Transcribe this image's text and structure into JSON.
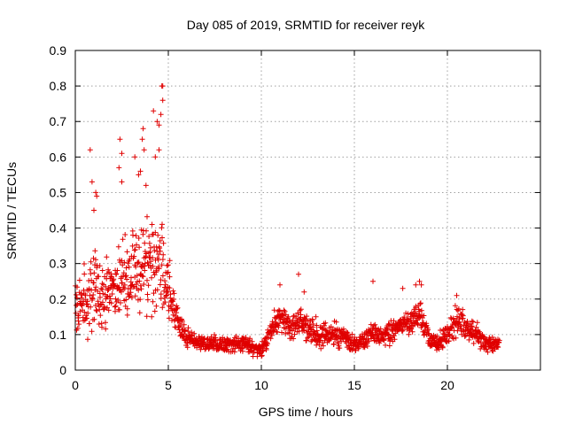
{
  "chart_data": {
    "type": "scatter",
    "title": "Day 085 of 2019, SRMTID for receiver reyk",
    "xlabel": "GPS time / hours",
    "ylabel": "SRMTID / TECUs",
    "xlim": [
      0,
      25
    ],
    "ylim": [
      0,
      0.9
    ],
    "xticks": [
      0,
      5,
      10,
      15,
      20
    ],
    "yticks": [
      0,
      0.1,
      0.2,
      0.3,
      0.4,
      0.5,
      0.6,
      0.7,
      0.8,
      0.9
    ],
    "grid": true,
    "marker": "+",
    "color": "#e00000",
    "time_range": [
      0,
      22.8
    ],
    "envelope": [
      {
        "x": 0.0,
        "base": 0.18,
        "spread": 0.08
      },
      {
        "x": 0.5,
        "base": 0.2,
        "spread": 0.1
      },
      {
        "x": 1.0,
        "base": 0.21,
        "spread": 0.12
      },
      {
        "x": 1.5,
        "base": 0.2,
        "spread": 0.1
      },
      {
        "x": 2.0,
        "base": 0.24,
        "spread": 0.12
      },
      {
        "x": 2.5,
        "base": 0.25,
        "spread": 0.12
      },
      {
        "x": 3.0,
        "base": 0.27,
        "spread": 0.13
      },
      {
        "x": 3.5,
        "base": 0.28,
        "spread": 0.14
      },
      {
        "x": 4.0,
        "base": 0.3,
        "spread": 0.14
      },
      {
        "x": 4.5,
        "base": 0.3,
        "spread": 0.15
      },
      {
        "x": 5.0,
        "base": 0.22,
        "spread": 0.1
      },
      {
        "x": 5.5,
        "base": 0.14,
        "spread": 0.05
      },
      {
        "x": 6.0,
        "base": 0.09,
        "spread": 0.03
      },
      {
        "x": 7.0,
        "base": 0.075,
        "spread": 0.025
      },
      {
        "x": 8.0,
        "base": 0.07,
        "spread": 0.025
      },
      {
        "x": 9.0,
        "base": 0.075,
        "spread": 0.025
      },
      {
        "x": 10.0,
        "base": 0.055,
        "spread": 0.02
      },
      {
        "x": 10.5,
        "base": 0.11,
        "spread": 0.04
      },
      {
        "x": 11.0,
        "base": 0.15,
        "spread": 0.04
      },
      {
        "x": 11.5,
        "base": 0.12,
        "spread": 0.04
      },
      {
        "x": 12.0,
        "base": 0.14,
        "spread": 0.05
      },
      {
        "x": 12.5,
        "base": 0.12,
        "spread": 0.04
      },
      {
        "x": 13.0,
        "base": 0.1,
        "spread": 0.04
      },
      {
        "x": 14.0,
        "base": 0.1,
        "spread": 0.035
      },
      {
        "x": 15.0,
        "base": 0.07,
        "spread": 0.025
      },
      {
        "x": 15.5,
        "base": 0.08,
        "spread": 0.03
      },
      {
        "x": 16.0,
        "base": 0.11,
        "spread": 0.04
      },
      {
        "x": 16.5,
        "base": 0.09,
        "spread": 0.035
      },
      {
        "x": 17.0,
        "base": 0.11,
        "spread": 0.04
      },
      {
        "x": 17.5,
        "base": 0.12,
        "spread": 0.04
      },
      {
        "x": 18.0,
        "base": 0.13,
        "spread": 0.04
      },
      {
        "x": 18.5,
        "base": 0.16,
        "spread": 0.05
      },
      {
        "x": 19.0,
        "base": 0.09,
        "spread": 0.03
      },
      {
        "x": 19.5,
        "base": 0.08,
        "spread": 0.03
      },
      {
        "x": 20.0,
        "base": 0.1,
        "spread": 0.035
      },
      {
        "x": 20.5,
        "base": 0.14,
        "spread": 0.05
      },
      {
        "x": 21.0,
        "base": 0.12,
        "spread": 0.04
      },
      {
        "x": 21.5,
        "base": 0.11,
        "spread": 0.04
      },
      {
        "x": 22.0,
        "base": 0.08,
        "spread": 0.025
      },
      {
        "x": 22.8,
        "base": 0.07,
        "spread": 0.02
      }
    ],
    "outliers": [
      {
        "x": 0.8,
        "y": 0.62
      },
      {
        "x": 0.9,
        "y": 0.53
      },
      {
        "x": 1.1,
        "y": 0.5
      },
      {
        "x": 1.15,
        "y": 0.49
      },
      {
        "x": 1.0,
        "y": 0.45
      },
      {
        "x": 2.4,
        "y": 0.65
      },
      {
        "x": 2.5,
        "y": 0.61
      },
      {
        "x": 2.35,
        "y": 0.57
      },
      {
        "x": 2.5,
        "y": 0.53
      },
      {
        "x": 3.2,
        "y": 0.6
      },
      {
        "x": 3.5,
        "y": 0.56
      },
      {
        "x": 3.4,
        "y": 0.55
      },
      {
        "x": 3.6,
        "y": 0.65
      },
      {
        "x": 3.65,
        "y": 0.68
      },
      {
        "x": 3.7,
        "y": 0.62
      },
      {
        "x": 3.8,
        "y": 0.52
      },
      {
        "x": 4.2,
        "y": 0.73
      },
      {
        "x": 4.4,
        "y": 0.7
      },
      {
        "x": 4.5,
        "y": 0.69
      },
      {
        "x": 4.6,
        "y": 0.72
      },
      {
        "x": 4.7,
        "y": 0.76
      },
      {
        "x": 4.65,
        "y": 0.8
      },
      {
        "x": 4.7,
        "y": 0.8
      },
      {
        "x": 4.3,
        "y": 0.6
      },
      {
        "x": 4.5,
        "y": 0.62
      },
      {
        "x": 11.0,
        "y": 0.24
      },
      {
        "x": 12.0,
        "y": 0.27
      },
      {
        "x": 12.3,
        "y": 0.22
      },
      {
        "x": 16.0,
        "y": 0.25
      },
      {
        "x": 17.6,
        "y": 0.23
      },
      {
        "x": 18.3,
        "y": 0.24
      },
      {
        "x": 18.5,
        "y": 0.25
      },
      {
        "x": 18.6,
        "y": 0.24
      },
      {
        "x": 20.5,
        "y": 0.21
      }
    ]
  }
}
